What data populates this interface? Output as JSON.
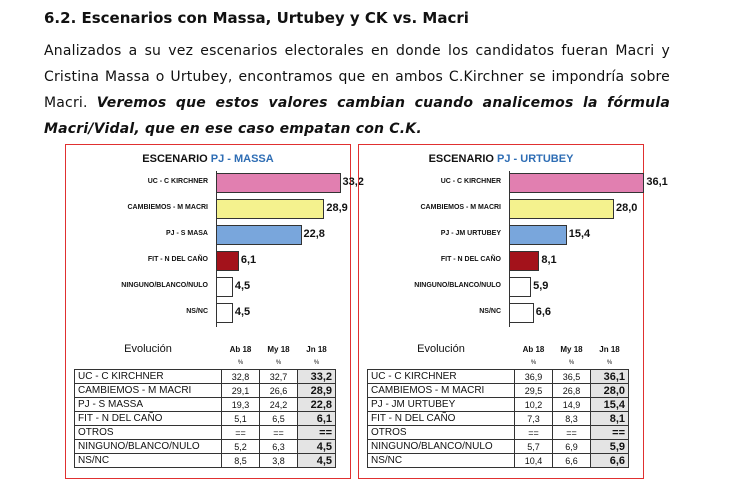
{
  "heading": "6.2. Escenarios con Massa, Urtubey  y CK  vs. Macri",
  "paragraph": {
    "normal": "Analizados a su vez escenarios electorales en donde los candidatos fueran Macri y Cristina Massa o Urtubey, encontramos que en ambos C.Kirchner se impondría sobre Macri. ",
    "emphasis": "Veremos que estos valores cambian cuando analicemos la fórmula Macri/Vidal, que en ese caso empatan con C.K."
  },
  "panels": [
    {
      "title_prefix": "ESCENARIO ",
      "title_highlight": "PJ - MASSA",
      "chart_data": {
        "type": "bar",
        "orientation": "horizontal",
        "title": "ESCENARIO PJ - MASSA",
        "categories": [
          "UC - C KIRCHNER",
          "CAMBIEMOS - M MACRI",
          "PJ - S MASA",
          "FIT - N DEL CAÑO",
          "NINGUNO/BLANCO/NULO",
          "NS/NC"
        ],
        "values": [
          33.2,
          28.9,
          22.8,
          6.1,
          4.5,
          4.5
        ],
        "value_labels": [
          "33,2",
          "28,9",
          "22,8",
          "6,1",
          "4,5",
          "4,5"
        ],
        "colors": [
          "#e17fb0",
          "#f4f28e",
          "#79a6dc",
          "#a3121b",
          "#ffffff",
          "#ffffff"
        ],
        "xlim": [
          0,
          40
        ],
        "grid": false
      },
      "table": {
        "title": "Evolución",
        "columns": [
          "Ab 18",
          "My 18",
          "Jn 18"
        ],
        "units": [
          "%",
          "%",
          "%"
        ],
        "rows": [
          {
            "name": "UC - C KIRCHNER",
            "values": [
              "32,8",
              "32,7",
              "33,2"
            ]
          },
          {
            "name": "CAMBIEMOS - M MACRI",
            "values": [
              "29,1",
              "26,6",
              "28,9"
            ]
          },
          {
            "name": "PJ - S MASSA",
            "values": [
              "19,3",
              "24,2",
              "22,8"
            ]
          },
          {
            "name": "FIT - N DEL CAÑO",
            "values": [
              "5,1",
              "6,5",
              "6,1"
            ]
          },
          {
            "name": "OTROS",
            "values": [
              "==",
              "==",
              "=="
            ]
          },
          {
            "name": "NINGUNO/BLANCO/NULO",
            "values": [
              "5,2",
              "6,3",
              "4,5"
            ]
          },
          {
            "name": "NS/NC",
            "values": [
              "8,5",
              "3,8",
              "4,5"
            ]
          }
        ]
      }
    },
    {
      "title_prefix": "ESCENARIO ",
      "title_highlight": "PJ - URTUBEY",
      "chart_data": {
        "type": "bar",
        "orientation": "horizontal",
        "title": "ESCENARIO PJ - URTUBEY",
        "categories": [
          "UC - C KIRCHNER",
          "CAMBIEMOS - M MACRI",
          "PJ - JM URTUBEY",
          "FIT - N DEL CAÑO",
          "NINGUNO/BLANCO/NULO",
          "NS/NC"
        ],
        "values": [
          36.1,
          28.0,
          15.4,
          8.1,
          5.9,
          6.6
        ],
        "value_labels": [
          "36,1",
          "28,0",
          "15,4",
          "8,1",
          "5,9",
          "6,6"
        ],
        "colors": [
          "#e17fb0",
          "#f4f28e",
          "#79a6dc",
          "#a3121b",
          "#ffffff",
          "#ffffff"
        ],
        "xlim": [
          0,
          40
        ],
        "grid": false
      },
      "table": {
        "title": "Evolución",
        "columns": [
          "Ab 18",
          "My 18",
          "Jn 18"
        ],
        "units": [
          "%",
          "%",
          "%"
        ],
        "rows": [
          {
            "name": "UC - C KIRCHNER",
            "values": [
              "36,9",
              "36,5",
              "36,1"
            ]
          },
          {
            "name": "CAMBIEMOS - M MACRI",
            "values": [
              "29,5",
              "26,8",
              "28,0"
            ]
          },
          {
            "name": "PJ - JM URTUBEY",
            "values": [
              "10,2",
              "14,9",
              "15,4"
            ]
          },
          {
            "name": "FIT - N DEL CAÑO",
            "values": [
              "7,3",
              "8,3",
              "8,1"
            ]
          },
          {
            "name": "OTROS",
            "values": [
              "==",
              "==",
              "=="
            ]
          },
          {
            "name": "NINGUNO/BLANCO/NULO",
            "values": [
              "5,7",
              "6,9",
              "5,9"
            ]
          },
          {
            "name": "NS/NC",
            "values": [
              "10,4",
              "6,6",
              "6,6"
            ]
          }
        ]
      }
    }
  ]
}
